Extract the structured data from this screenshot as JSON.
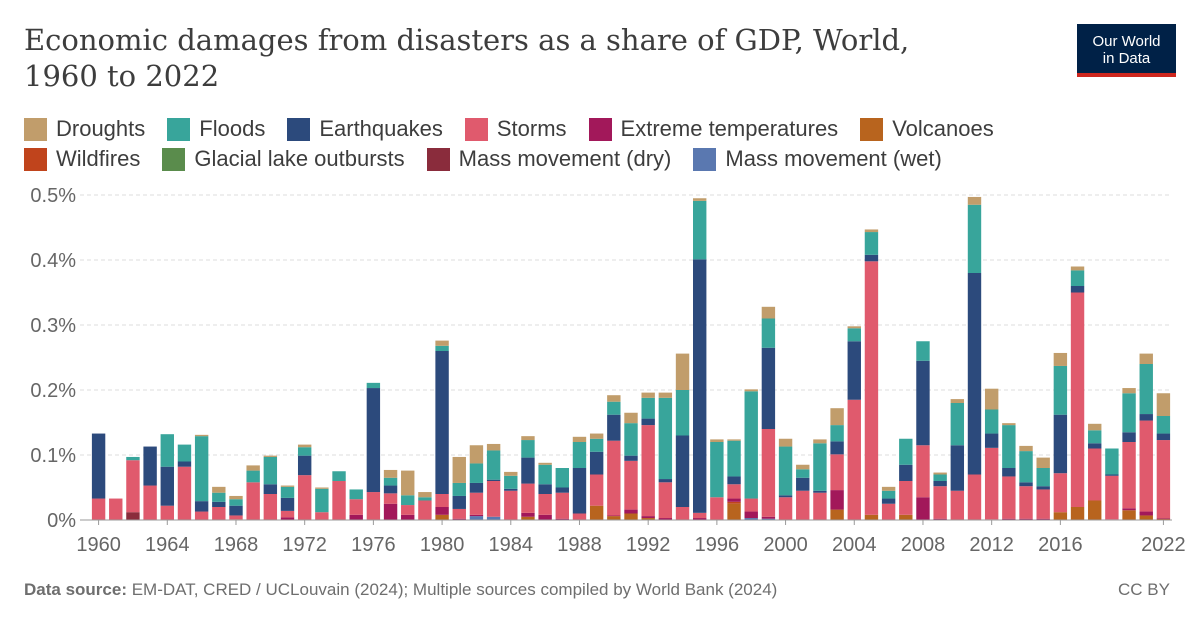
{
  "header": {
    "title_line1": "Economic damages from disasters as a share of GDP, World,",
    "title_line2": "1960 to 2022",
    "logo_line1": "Our World",
    "logo_line2": "in Data"
  },
  "footer": {
    "source_label": "Data source:",
    "source_text": " EM-DAT, CRED / UCLouvain (2024); Multiple sources compiled by World Bank (2024)",
    "license": "CC BY"
  },
  "chart_data": {
    "type": "bar",
    "stacked": true,
    "title": "Economic damages from disasters as a share of GDP, World, 1960 to 2022",
    "unit": "%",
    "ylim": [
      0,
      0.5
    ],
    "yticks": [
      0,
      0.1,
      0.2,
      0.3,
      0.4,
      0.5
    ],
    "ytick_labels": [
      "0%",
      "0.1%",
      "0.2%",
      "0.3%",
      "0.4%",
      "0.5%"
    ],
    "xtick_labels": [
      "1960",
      "1964",
      "1968",
      "1972",
      "1976",
      "1980",
      "1984",
      "1988",
      "1992",
      "1996",
      "2000",
      "2004",
      "2008",
      "2012",
      "2016",
      "2022"
    ],
    "grid": "horizontal dashed",
    "legend_position": "top",
    "years": [
      1960,
      1961,
      1962,
      1963,
      1964,
      1965,
      1966,
      1967,
      1968,
      1969,
      1970,
      1971,
      1972,
      1973,
      1974,
      1975,
      1976,
      1977,
      1978,
      1979,
      1980,
      1981,
      1982,
      1983,
      1984,
      1985,
      1986,
      1987,
      1988,
      1989,
      1990,
      1991,
      1992,
      1993,
      1994,
      1995,
      1996,
      1997,
      1998,
      1999,
      2000,
      2001,
      2002,
      2003,
      2004,
      2005,
      2006,
      2007,
      2008,
      2009,
      2010,
      2011,
      2012,
      2013,
      2014,
      2015,
      2016,
      2017,
      2018,
      2019,
      2020,
      2021,
      2022
    ],
    "stack_order": [
      "Volcanoes",
      "Wildfires",
      "Mass movement (wet)",
      "Mass movement (dry)",
      "Glacial lake outbursts",
      "Extreme temperatures",
      "Storms",
      "Earthquakes",
      "Floods",
      "Droughts"
    ],
    "series": [
      {
        "name": "Droughts",
        "color": "#c19d6b",
        "values": [
          0,
          0,
          0,
          0,
          0,
          0,
          0.002,
          0.009,
          0.005,
          0.008,
          0.002,
          0.002,
          0.004,
          0.002,
          0,
          0,
          0,
          0.012,
          0.038,
          0.008,
          0.008,
          0.04,
          0.028,
          0.01,
          0.006,
          0.006,
          0.003,
          0,
          0.008,
          0.008,
          0.01,
          0.016,
          0.008,
          0.008,
          0.056,
          0.004,
          0.004,
          0.002,
          0.003,
          0.018,
          0.012,
          0.007,
          0.006,
          0.026,
          0.003,
          0.004,
          0.006,
          0,
          0,
          0.003,
          0.006,
          0.012,
          0.032,
          0.003,
          0.008,
          0.016,
          0.02,
          0.006,
          0.01,
          0,
          0.008,
          0.016,
          0.035
        ]
      },
      {
        "name": "Floods",
        "color": "#38a59b",
        "values": [
          0,
          0,
          0.005,
          0,
          0.05,
          0.026,
          0.1,
          0.014,
          0.01,
          0.018,
          0.042,
          0.017,
          0.013,
          0.036,
          0.015,
          0.015,
          0.008,
          0.012,
          0.015,
          0.005,
          0.008,
          0.02,
          0.03,
          0.045,
          0.02,
          0.027,
          0.03,
          0.03,
          0.04,
          0.02,
          0.02,
          0.05,
          0.032,
          0.125,
          0.07,
          0.09,
          0.085,
          0.055,
          0.165,
          0.045,
          0.075,
          0.013,
          0.073,
          0.025,
          0.02,
          0.035,
          0.012,
          0.04,
          0.03,
          0.01,
          0.065,
          0.105,
          0.037,
          0.066,
          0.048,
          0.028,
          0.075,
          0.024,
          0.02,
          0.04,
          0.06,
          0.077,
          0.027
        ]
      },
      {
        "name": "Earthquakes",
        "color": "#2c4a7c",
        "values": [
          0.1,
          0,
          0,
          0.06,
          0.06,
          0.008,
          0.016,
          0.008,
          0.015,
          0,
          0.015,
          0.02,
          0.03,
          0,
          0,
          0,
          0.16,
          0.012,
          0,
          0,
          0.22,
          0.02,
          0.015,
          0.002,
          0.003,
          0.04,
          0.015,
          0.008,
          0.07,
          0.035,
          0.04,
          0.008,
          0.01,
          0.005,
          0.11,
          0.39,
          0,
          0.012,
          0,
          0.125,
          0.003,
          0.02,
          0.003,
          0.02,
          0.09,
          0.01,
          0.008,
          0.025,
          0.13,
          0.008,
          0.07,
          0.31,
          0.022,
          0.013,
          0.006,
          0.005,
          0.09,
          0.01,
          0.008,
          0.002,
          0.015,
          0.01,
          0.01
        ]
      },
      {
        "name": "Storms",
        "color": "#e05a6d",
        "values": [
          0.033,
          0.033,
          0.08,
          0.053,
          0.022,
          0.082,
          0.013,
          0.02,
          0.006,
          0.058,
          0.04,
          0.01,
          0.069,
          0.012,
          0.06,
          0.024,
          0.043,
          0.016,
          0.015,
          0.03,
          0.02,
          0.015,
          0.034,
          0.055,
          0.045,
          0.045,
          0.032,
          0.04,
          0.01,
          0.048,
          0.115,
          0.075,
          0.14,
          0.055,
          0.02,
          0.008,
          0.035,
          0.022,
          0.02,
          0.135,
          0.035,
          0.045,
          0.042,
          0.055,
          0.185,
          0.39,
          0.025,
          0.052,
          0.08,
          0.05,
          0.045,
          0.07,
          0.11,
          0.065,
          0.05,
          0.045,
          0.06,
          0.33,
          0.08,
          0.067,
          0.102,
          0.14,
          0.12
        ]
      },
      {
        "name": "Extreme temperatures",
        "color": "#a2185a",
        "values": [
          0,
          0,
          0,
          0,
          0,
          0,
          0,
          0,
          0,
          0,
          0,
          0.004,
          0,
          0,
          0,
          0.008,
          0,
          0.025,
          0.008,
          0,
          0.012,
          0.002,
          0.002,
          0,
          0,
          0.006,
          0.008,
          0.002,
          0,
          0,
          0.001,
          0.006,
          0.003,
          0.003,
          0,
          0.003,
          0,
          0.005,
          0.01,
          0.003,
          0,
          0,
          0,
          0.03,
          0,
          0,
          0,
          0,
          0.035,
          0.002,
          0,
          0,
          0.001,
          0.002,
          0.002,
          0.002,
          0,
          0,
          0,
          0.001,
          0.003,
          0.006,
          0.001
        ]
      },
      {
        "name": "Mass movement (dry)",
        "color": "#8a2c3c",
        "values": [
          0,
          0,
          0.012,
          0,
          0,
          0,
          0,
          0,
          0,
          0,
          0,
          0,
          0,
          0,
          0,
          0,
          0,
          0,
          0,
          0,
          0,
          0,
          0,
          0,
          0,
          0,
          0,
          0,
          0,
          0,
          0,
          0,
          0,
          0,
          0,
          0,
          0,
          0,
          0,
          0,
          0,
          0,
          0,
          0,
          0,
          0,
          0,
          0,
          0,
          0,
          0,
          0,
          0,
          0,
          0,
          0,
          0,
          0,
          0,
          0,
          0,
          0,
          0
        ]
      },
      {
        "name": "Mass movement (wet)",
        "color": "#5a78b0",
        "values": [
          0,
          0,
          0,
          0,
          0,
          0,
          0,
          0,
          0,
          0,
          0,
          0,
          0,
          0,
          0,
          0,
          0,
          0,
          0,
          0,
          0,
          0,
          0.006,
          0.005,
          0,
          0,
          0,
          0,
          0,
          0,
          0,
          0,
          0,
          0,
          0,
          0,
          0,
          0,
          0.003,
          0.002,
          0,
          0,
          0,
          0,
          0,
          0,
          0,
          0,
          0,
          0,
          0,
          0,
          0,
          0,
          0,
          0,
          0,
          0,
          0,
          0,
          0,
          0,
          0
        ]
      },
      {
        "name": "Glacial lake outbursts",
        "color": "#5a8c4c",
        "values": [
          0,
          0,
          0,
          0,
          0,
          0,
          0,
          0,
          0,
          0,
          0,
          0,
          0,
          0,
          0,
          0,
          0,
          0,
          0,
          0,
          0,
          0,
          0,
          0,
          0,
          0,
          0,
          0,
          0,
          0,
          0,
          0,
          0,
          0,
          0,
          0,
          0,
          0,
          0,
          0,
          0,
          0,
          0,
          0,
          0,
          0,
          0,
          0,
          0,
          0,
          0,
          0,
          0,
          0,
          0,
          0,
          0,
          0,
          0,
          0,
          0,
          0,
          0
        ]
      },
      {
        "name": "Wildfires",
        "color": "#c0441c",
        "values": [
          0,
          0,
          0,
          0,
          0,
          0,
          0,
          0,
          0,
          0,
          0,
          0,
          0,
          0,
          0,
          0,
          0,
          0,
          0,
          0,
          0,
          0,
          0,
          0,
          0,
          0,
          0,
          0,
          0,
          0,
          0,
          0,
          0,
          0,
          0,
          0,
          0,
          0.003,
          0,
          0,
          0,
          0,
          0,
          0,
          0,
          0,
          0,
          0,
          0,
          0,
          0,
          0,
          0,
          0,
          0,
          0,
          0,
          0,
          0,
          0,
          0,
          0,
          0.002
        ]
      },
      {
        "name": "Volcanoes",
        "color": "#b8641e",
        "values": [
          0,
          0,
          0,
          0,
          0,
          0,
          0,
          0,
          0.001,
          0,
          0,
          0,
          0,
          0,
          0,
          0,
          0,
          0,
          0,
          0,
          0.008,
          0,
          0,
          0,
          0,
          0.005,
          0,
          0,
          0,
          0.022,
          0.006,
          0.01,
          0.003,
          0,
          0,
          0,
          0,
          0.025,
          0,
          0,
          0,
          0,
          0,
          0.016,
          0,
          0.008,
          0,
          0.008,
          0,
          0,
          0,
          0,
          0,
          0,
          0,
          0,
          0.012,
          0.02,
          0.03,
          0,
          0.015,
          0.007,
          0
        ]
      }
    ]
  }
}
